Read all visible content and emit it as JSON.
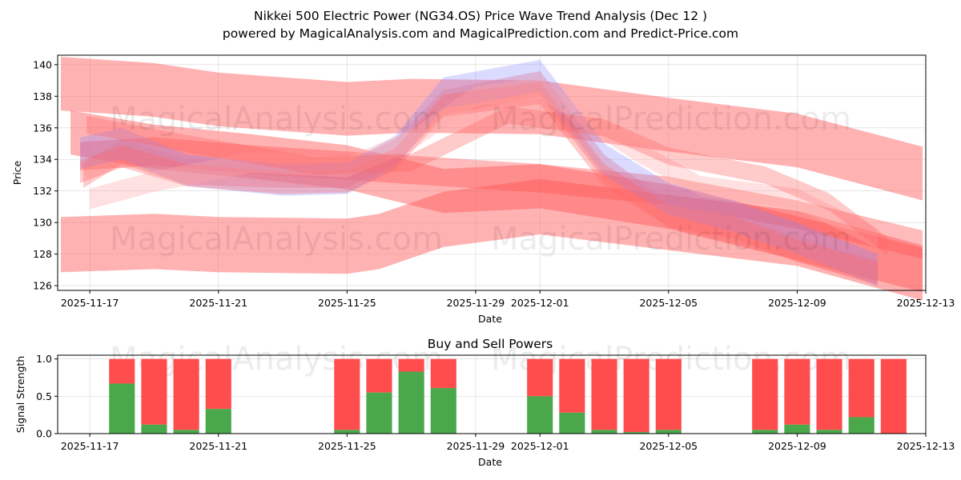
{
  "chart_data": [
    {
      "type": "area",
      "title": "Nikkei 500 Electric Power (NG34.OS) Price Wave Trend Analysis (Dec 12 )",
      "subtitle": "powered by MagicalAnalysis.com and MagicalPrediction.com and Predict-Price.com",
      "xlabel": "Date",
      "ylabel": "Price",
      "ylim": [
        125.7,
        140.6
      ],
      "yticks": [
        126,
        128,
        130,
        132,
        134,
        136,
        138,
        140
      ],
      "xticks": [
        "2025-11-17",
        "2025-11-21",
        "2025-11-25",
        "2025-11-29",
        "2025-12-01",
        "2025-12-05",
        "2025-12-09",
        "2025-12-13"
      ],
      "xtick_days": [
        0,
        4,
        8,
        12,
        14,
        18,
        22,
        26
      ],
      "xlim_days": [
        -1.0,
        26.0
      ],
      "watermarks": [
        "MagicalAnalysis.com",
        "MagicalPrediction.com"
      ],
      "bands": [
        {
          "color": "#ff6666",
          "opacity": 0.5,
          "days": [
            -0.9,
            2,
            4,
            8,
            10,
            14,
            18,
            22,
            25.9
          ],
          "center": [
            138.8,
            138.4,
            137.8,
            137.2,
            137.4,
            137.3,
            136.2,
            135.2,
            133.1
          ],
          "width": 3.4
        },
        {
          "color": "#ff6666",
          "opacity": 0.5,
          "days": [
            -0.9,
            2,
            4,
            8,
            9,
            11,
            14,
            18,
            22,
            25.9
          ],
          "center": [
            128.6,
            128.8,
            128.6,
            128.5,
            128.8,
            130.2,
            131.0,
            130.0,
            129.0,
            126.8
          ],
          "width": 3.5
        },
        {
          "color": "#ff5555",
          "opacity": 0.45,
          "days": [
            -0.6,
            2,
            5,
            8,
            11,
            14,
            18,
            22,
            25.9
          ],
          "center": [
            135.7,
            134.8,
            134.2,
            133.5,
            132.0,
            132.3,
            131.0,
            129.0,
            127.0
          ],
          "width": 2.8
        },
        {
          "color": "#ff5555",
          "opacity": 0.4,
          "days": [
            -0.3,
            2,
            5,
            8,
            11,
            14,
            18,
            22,
            25.9
          ],
          "center": [
            134.2,
            134.5,
            134.0,
            133.6,
            133.2,
            132.8,
            132.0,
            130.5,
            128.6
          ],
          "width": 1.8
        },
        {
          "color": "#ff7777",
          "opacity": 0.4,
          "days": [
            -0.2,
            1,
            3,
            6,
            8,
            9.5,
            11,
            14,
            16,
            18,
            21,
            24.5
          ],
          "center": [
            133.0,
            134.5,
            133.2,
            133.0,
            133.0,
            134.5,
            137.6,
            138.8,
            133.5,
            130.5,
            129.0,
            126.8
          ],
          "width": 1.6
        },
        {
          "color": "#8888ff",
          "opacity": 0.3,
          "days": [
            -0.3,
            1,
            3,
            6,
            8,
            9.5,
            11,
            14,
            16,
            18,
            20,
            22,
            24.5
          ],
          "center": [
            134.4,
            135.0,
            133.3,
            132.7,
            132.8,
            134.5,
            138.2,
            139.3,
            134.0,
            131.5,
            130.4,
            129.0,
            127.0
          ],
          "width": 2.0
        },
        {
          "color": "#ff6666",
          "opacity": 0.35,
          "days": [
            -0.3,
            1,
            3,
            6,
            8,
            9.5,
            11,
            14,
            16,
            18,
            20,
            22,
            24.5
          ],
          "center": [
            133.2,
            134.2,
            133.0,
            132.5,
            132.6,
            134.0,
            137.4,
            138.2,
            133.0,
            130.4,
            129.7,
            128.2,
            126.8
          ],
          "width": 1.4
        },
        {
          "color": "#ffaaaa",
          "opacity": 0.35,
          "days": [
            0,
            2,
            5,
            8,
            10,
            12,
            14,
            17,
            19,
            22,
            24.5
          ],
          "center": [
            131.5,
            132.6,
            133.8,
            133.5,
            135.2,
            138.0,
            138.5,
            134.5,
            132.3,
            131.5,
            129.0
          ],
          "width": 1.3
        },
        {
          "color": "#ff6666",
          "opacity": 0.35,
          "days": [
            -0.1,
            3,
            7,
            10,
            13,
            16,
            18,
            21,
            23,
            24.8
          ],
          "center": [
            136.2,
            135.0,
            133.6,
            133.8,
            136.8,
            136.0,
            134.2,
            133.0,
            131.3,
            128.5
          ],
          "width": 1.1
        }
      ],
      "bars_title": "Buy and Sell Powers",
      "bars_xlabel": "Date",
      "bars_ylabel": "Signal Strength",
      "bars_ylim": [
        0,
        1.05
      ],
      "bars_yticks": [
        0.0,
        0.5,
        1.0
      ],
      "bars_xtick_days": [
        0,
        4,
        8,
        12,
        14,
        18,
        22,
        26
      ],
      "bars_xlim_days": [
        -1.0,
        26.0
      ],
      "buy_color": "#4aa84a",
      "sell_color": "#ff4d4d",
      "bar_days": [
        1,
        2,
        3,
        4,
        8,
        9,
        10,
        11,
        14,
        15,
        16,
        17,
        18,
        21,
        22,
        23,
        24,
        25
      ],
      "buy_values": [
        0.67,
        0.12,
        0.05,
        0.33,
        0.05,
        0.55,
        0.83,
        0.61,
        0.5,
        0.28,
        0.05,
        0.02,
        0.05,
        0.05,
        0.12,
        0.05,
        0.22,
        0.0
      ],
      "total_values": [
        1,
        1,
        1,
        1,
        1,
        1,
        1,
        1,
        1,
        1,
        1,
        1,
        1,
        1,
        1,
        1,
        1,
        1
      ]
    }
  ]
}
